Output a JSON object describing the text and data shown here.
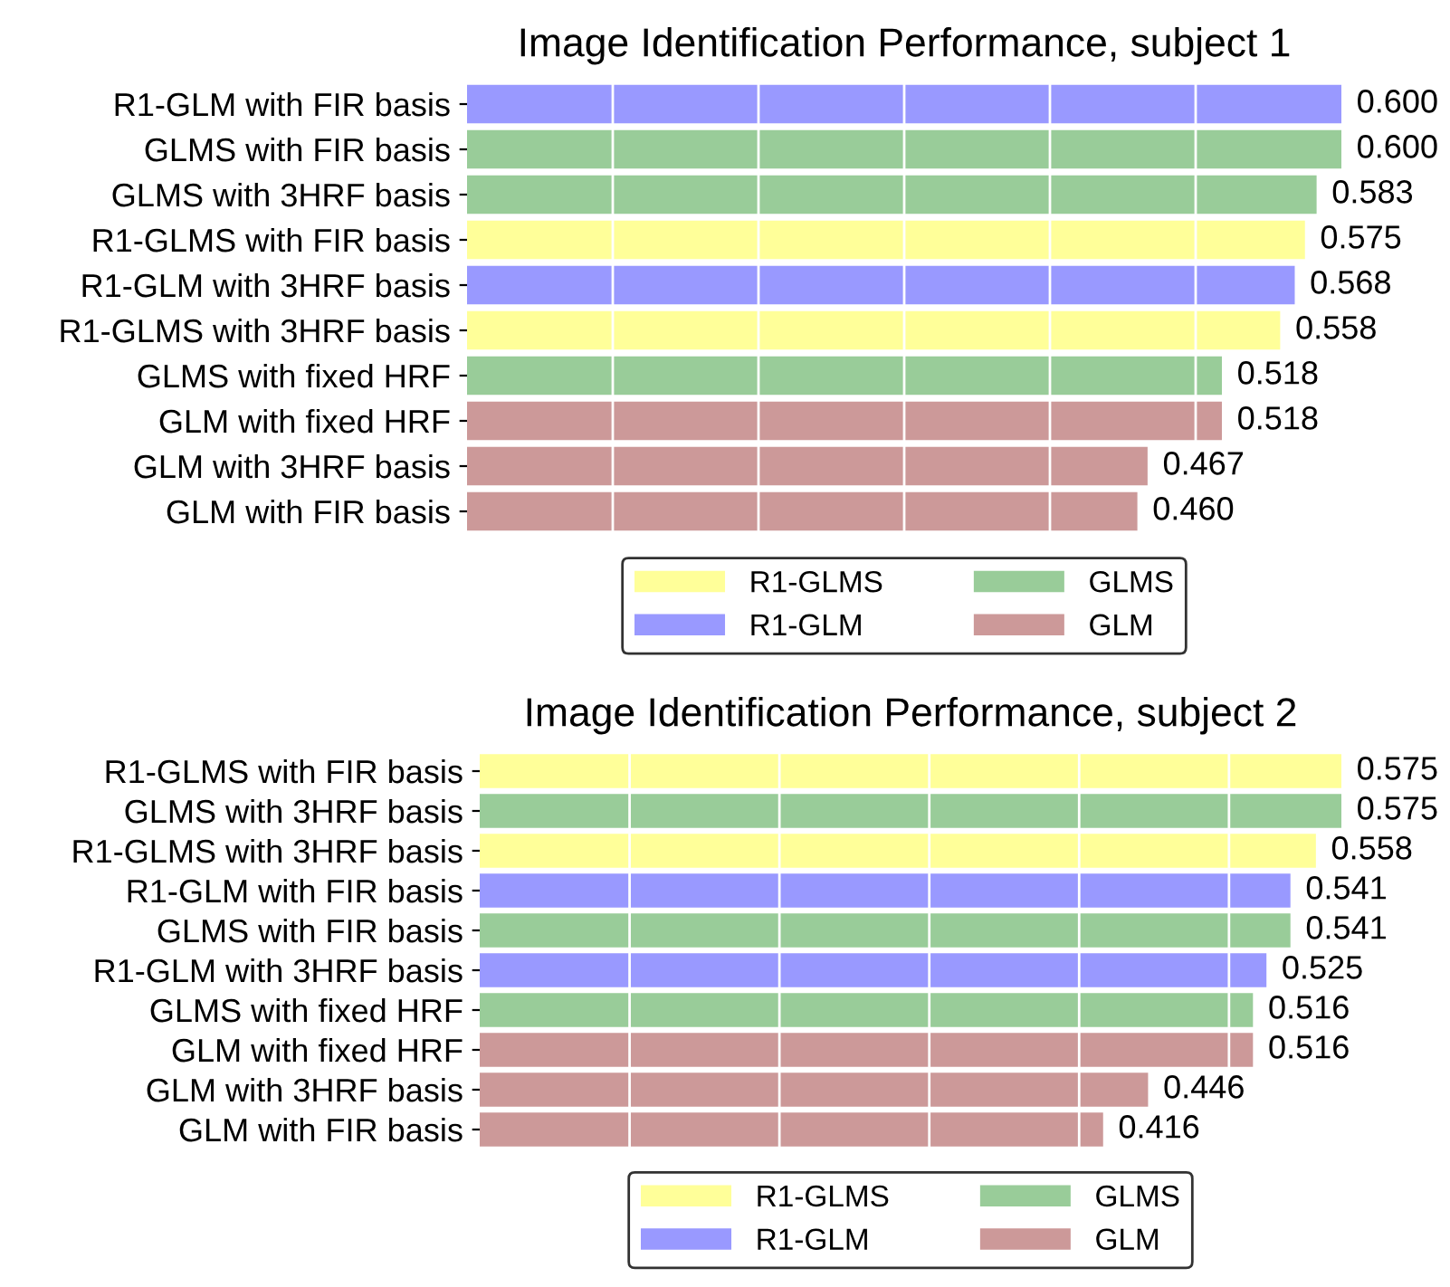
{
  "chart_data": [
    {
      "type": "bar",
      "orientation": "horizontal",
      "title": "Image Identification Performance, subject 1",
      "categories": [
        "R1-GLM with FIR basis",
        "GLMS with FIR basis",
        "GLMS with 3HRF basis",
        "R1-GLMS with FIR basis",
        "R1-GLM with 3HRF basis",
        "R1-GLMS with 3HRF basis",
        "GLMS with fixed HRF",
        "GLM with fixed HRF",
        "GLM with 3HRF basis",
        "GLM with FIR basis"
      ],
      "series": [
        {
          "name": "R1-GLMS",
          "color": "#ffff99",
          "values": [
            null,
            null,
            null,
            0.575,
            null,
            0.558,
            null,
            null,
            null,
            null
          ],
          "value_labels": [
            null,
            null,
            null,
            "0.575",
            null,
            "0.558",
            null,
            null,
            null,
            null
          ]
        },
        {
          "name": "R1-GLM",
          "color": "#9999ff",
          "values": [
            0.6,
            null,
            null,
            null,
            0.568,
            null,
            null,
            null,
            null,
            null
          ],
          "value_labels": [
            "0.600",
            null,
            null,
            null,
            "0.568",
            null,
            null,
            null,
            null,
            null
          ]
        },
        {
          "name": "GLMS",
          "color": "#99cc99",
          "values": [
            null,
            0.6,
            0.583,
            null,
            null,
            null,
            0.518,
            null,
            null,
            null
          ],
          "value_labels": [
            null,
            "0.600",
            "0.583",
            null,
            null,
            null,
            "0.518",
            null,
            null,
            null
          ]
        },
        {
          "name": "GLM",
          "color": "#cc9999",
          "values": [
            null,
            null,
            null,
            null,
            null,
            null,
            null,
            0.518,
            0.467,
            0.46
          ],
          "value_labels": [
            null,
            null,
            null,
            null,
            null,
            null,
            null,
            "0.518",
            "0.467",
            "0.460"
          ]
        }
      ],
      "xlim": [
        0,
        0.6
      ],
      "xticks": [
        {
          "value": 0.1,
          "label": null
        },
        {
          "value": 0.2,
          "label": null
        },
        {
          "value": 0.3,
          "label": null
        },
        {
          "value": 0.4,
          "label": null
        },
        {
          "value": 0.5,
          "label": null
        }
      ],
      "grid": "x",
      "tick_labels": "y",
      "legend": "bottom"
    },
    {
      "type": "bar",
      "orientation": "horizontal",
      "title": "Image Identification Performance, subject 2",
      "categories": [
        "R1-GLMS with FIR basis",
        "GLMS with 3HRF basis",
        "R1-GLMS with 3HRF basis",
        "R1-GLM with FIR basis",
        "GLMS with FIR basis",
        "R1-GLM with 3HRF basis",
        "GLMS with fixed HRF",
        "GLM with fixed HRF",
        "GLM with 3HRF basis",
        "GLM with FIR basis"
      ],
      "series": [
        {
          "name": "R1-GLMS",
          "color": "#ffff99",
          "values": [
            0.575,
            null,
            0.558,
            null,
            null,
            null,
            null,
            null,
            null,
            null
          ],
          "value_labels": [
            "0.575",
            null,
            "0.558",
            null,
            null,
            null,
            null,
            null,
            null,
            null
          ]
        },
        {
          "name": "R1-GLM",
          "color": "#9999ff",
          "values": [
            null,
            null,
            null,
            0.541,
            null,
            0.525,
            null,
            null,
            null,
            null
          ],
          "value_labels": [
            null,
            null,
            null,
            "0.541",
            null,
            "0.525",
            null,
            null,
            null,
            null
          ]
        },
        {
          "name": "GLMS",
          "color": "#99cc99",
          "values": [
            null,
            0.575,
            null,
            null,
            0.541,
            null,
            0.516,
            null,
            null,
            null
          ],
          "value_labels": [
            null,
            "0.575",
            null,
            null,
            "0.541",
            null,
            "0.516",
            null,
            null,
            null
          ]
        },
        {
          "name": "GLM",
          "color": "#cc9999",
          "values": [
            null,
            null,
            null,
            null,
            null,
            null,
            null,
            0.516,
            0.446,
            0.416
          ],
          "value_labels": [
            null,
            null,
            null,
            null,
            null,
            null,
            null,
            "0.516",
            "0.446",
            "0.416"
          ]
        }
      ],
      "xlim": [
        0,
        0.575
      ],
      "xticks": [
        {
          "value": 0.1,
          "label": null
        },
        {
          "value": 0.2,
          "label": null
        },
        {
          "value": 0.3,
          "label": null
        },
        {
          "value": 0.4,
          "label": null
        },
        {
          "value": 0.5,
          "label": null
        }
      ],
      "grid": "x",
      "tick_labels": "y",
      "legend": "bottom"
    }
  ]
}
